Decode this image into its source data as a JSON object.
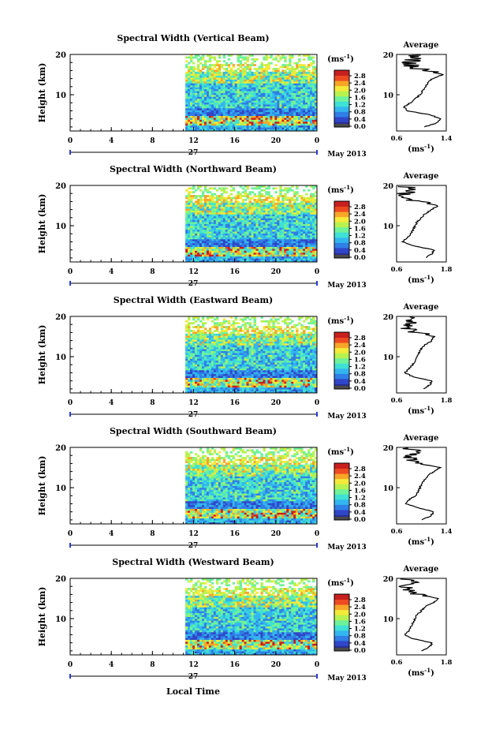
{
  "xlabel": "Local Time",
  "colors": {
    "colorbar": [
      "#2b2f8f",
      "#3046c8",
      "#2f7fe6",
      "#33b6ee",
      "#3fe0d5",
      "#6ef29a",
      "#b8f24f",
      "#f4ea3a",
      "#f7a628",
      "#ee4a21",
      "#c81f1f"
    ],
    "legend_bottom": "#4a4a4a",
    "axis": "#000000"
  },
  "chart_data": [
    {
      "type": "heatmap",
      "title": "Spectral Width (Vertical Beam)",
      "ylabel": "Height (km)",
      "yticks": [
        "20",
        "10"
      ],
      "ylim": [
        1,
        20
      ],
      "xticks": [
        "0",
        "4",
        "8",
        "12",
        "16",
        "20",
        "0"
      ],
      "xlim": [
        0,
        24
      ],
      "date_label": "27",
      "month_label": "May 2013",
      "data_start_hour": 11.2,
      "colorbar": {
        "unit": "(ms-1)",
        "ticks": [
          "2.8",
          "2.4",
          "2.0",
          "1.6",
          "1.2",
          "0.8",
          "0.4",
          "0.0"
        ]
      },
      "average": {
        "title": "Average",
        "xticks": [
          "0.6",
          "1.4"
        ],
        "xlim": [
          0.6,
          1.4
        ],
        "xlabel": "(ms-1)",
        "yticks": [
          "20",
          "10"
        ],
        "profile": [
          [
            1.05,
            2
          ],
          [
            1.25,
            3
          ],
          [
            1.3,
            4
          ],
          [
            1.15,
            5
          ],
          [
            0.78,
            6
          ],
          [
            0.72,
            7
          ],
          [
            0.82,
            8
          ],
          [
            0.9,
            9
          ],
          [
            0.98,
            10
          ],
          [
            1.02,
            11
          ],
          [
            1.06,
            12
          ],
          [
            1.1,
            13
          ],
          [
            1.18,
            14
          ],
          [
            1.35,
            15
          ],
          [
            1.05,
            16
          ],
          [
            0.85,
            17
          ],
          [
            0.8,
            18
          ],
          [
            0.9,
            19
          ],
          [
            0.85,
            20
          ]
        ]
      }
    },
    {
      "type": "heatmap",
      "title": "Spectral Width (Northward Beam)",
      "ylabel": "Height (km)",
      "yticks": [
        "20",
        "10"
      ],
      "ylim": [
        1,
        20
      ],
      "xticks": [
        "0",
        "4",
        "8",
        "12",
        "16",
        "20",
        "0"
      ],
      "xlim": [
        0,
        24
      ],
      "date_label": "27",
      "month_label": "May 2013",
      "data_start_hour": 11.2,
      "colorbar": {
        "unit": "(ms-1)",
        "ticks": [
          "2.8",
          "2.4",
          "2.0",
          "1.6",
          "1.2",
          "0.8",
          "0.4",
          "0.0"
        ]
      },
      "average": {
        "title": "Average",
        "xticks": [
          "0.6",
          "1.8"
        ],
        "xlim": [
          0.6,
          1.8
        ],
        "xlabel": "(ms-1)",
        "yticks": [
          "20",
          "10"
        ],
        "profile": [
          [
            1.3,
            2
          ],
          [
            1.45,
            3
          ],
          [
            1.5,
            4
          ],
          [
            1.0,
            5
          ],
          [
            0.75,
            6
          ],
          [
            0.85,
            7
          ],
          [
            0.95,
            8
          ],
          [
            1.0,
            9
          ],
          [
            1.05,
            10
          ],
          [
            1.1,
            11
          ],
          [
            1.2,
            12
          ],
          [
            1.3,
            13
          ],
          [
            1.45,
            14
          ],
          [
            1.6,
            15
          ],
          [
            1.1,
            16
          ],
          [
            0.85,
            17
          ],
          [
            0.8,
            18
          ],
          [
            1.0,
            19
          ],
          [
            0.75,
            20
          ]
        ]
      }
    },
    {
      "type": "heatmap",
      "title": "Spectral Width (Eastward Beam)",
      "ylabel": "Height (km)",
      "yticks": [
        "20",
        "10"
      ],
      "ylim": [
        1,
        20
      ],
      "xticks": [
        "0",
        "4",
        "8",
        "12",
        "16",
        "20",
        "0"
      ],
      "xlim": [
        0,
        24
      ],
      "date_label": "27",
      "month_label": "May 2013",
      "data_start_hour": 11.2,
      "colorbar": {
        "unit": "(ms-1)",
        "ticks": [
          "2.8",
          "2.4",
          "2.0",
          "1.6",
          "1.2",
          "0.8",
          "0.4",
          "0.0"
        ]
      },
      "average": {
        "title": "Average",
        "xticks": [
          "0.6",
          "1.8"
        ],
        "xlim": [
          0.6,
          1.8
        ],
        "xlabel": "(ms-1)",
        "yticks": [
          "20",
          "10"
        ],
        "profile": [
          [
            1.25,
            2
          ],
          [
            1.4,
            3
          ],
          [
            1.45,
            4
          ],
          [
            1.0,
            5
          ],
          [
            0.8,
            6
          ],
          [
            0.9,
            7
          ],
          [
            0.98,
            8
          ],
          [
            1.05,
            9
          ],
          [
            1.1,
            10
          ],
          [
            1.15,
            11
          ],
          [
            1.2,
            12
          ],
          [
            1.3,
            13
          ],
          [
            1.45,
            14
          ],
          [
            1.5,
            15
          ],
          [
            1.1,
            16
          ],
          [
            0.9,
            17
          ],
          [
            0.85,
            18
          ],
          [
            1.0,
            19
          ],
          [
            0.8,
            20
          ]
        ]
      }
    },
    {
      "type": "heatmap",
      "title": "Spectral Width (Southward Beam)",
      "ylabel": "Height (km)",
      "yticks": [
        "20",
        "10"
      ],
      "ylim": [
        1,
        20
      ],
      "xticks": [
        "0",
        "4",
        "8",
        "12",
        "16",
        "20",
        "0"
      ],
      "xlim": [
        0,
        24
      ],
      "date_label": "27",
      "month_label": "May 2013",
      "data_start_hour": 11.2,
      "colorbar": {
        "unit": "(ms-1)",
        "ticks": [
          "2.8",
          "2.4",
          "2.0",
          "1.6",
          "1.2",
          "0.8",
          "0.4",
          "0.0"
        ]
      },
      "average": {
        "title": "Average",
        "xticks": [
          "0.6",
          "1.4"
        ],
        "xlim": [
          0.6,
          1.4
        ],
        "xlabel": "(ms-1)",
        "yticks": [
          "20",
          "10"
        ],
        "profile": [
          [
            1.0,
            2
          ],
          [
            1.15,
            3
          ],
          [
            1.2,
            4
          ],
          [
            0.95,
            5
          ],
          [
            0.75,
            6
          ],
          [
            0.8,
            7
          ],
          [
            0.9,
            8
          ],
          [
            0.95,
            9
          ],
          [
            0.98,
            10
          ],
          [
            1.0,
            11
          ],
          [
            1.05,
            12
          ],
          [
            1.1,
            13
          ],
          [
            1.2,
            14
          ],
          [
            1.3,
            15
          ],
          [
            1.0,
            16
          ],
          [
            0.85,
            17
          ],
          [
            0.8,
            18
          ],
          [
            0.9,
            19
          ],
          [
            0.8,
            20
          ]
        ]
      }
    },
    {
      "type": "heatmap",
      "title": "Spectral Width (Westward Beam)",
      "ylabel": "Height (km)",
      "yticks": [
        "20",
        "10"
      ],
      "ylim": [
        1,
        20
      ],
      "xticks": [
        "0",
        "4",
        "8",
        "12",
        "16",
        "20",
        "0"
      ],
      "xlim": [
        0,
        24
      ],
      "date_label": "27",
      "month_label": "May 2013",
      "data_start_hour": 11.2,
      "colorbar": {
        "unit": "(ms-1)",
        "ticks": [
          "2.8",
          "2.4",
          "2.0",
          "1.6",
          "1.2",
          "0.8",
          "0.4",
          "0.0"
        ]
      },
      "average": {
        "title": "Average",
        "xticks": [
          "0.6",
          "1.8"
        ],
        "xlim": [
          0.6,
          1.8
        ],
        "xlabel": "(ms-1)",
        "yticks": [
          "20",
          "10"
        ],
        "profile": [
          [
            1.2,
            2
          ],
          [
            1.4,
            3
          ],
          [
            1.45,
            4
          ],
          [
            1.0,
            5
          ],
          [
            0.8,
            6
          ],
          [
            0.9,
            7
          ],
          [
            0.95,
            8
          ],
          [
            1.0,
            9
          ],
          [
            1.05,
            10
          ],
          [
            1.1,
            11
          ],
          [
            1.2,
            12
          ],
          [
            1.3,
            13
          ],
          [
            1.5,
            14
          ],
          [
            1.6,
            15
          ],
          [
            1.15,
            16
          ],
          [
            0.9,
            17
          ],
          [
            0.85,
            18
          ],
          [
            1.0,
            19
          ],
          [
            0.8,
            20
          ]
        ]
      }
    }
  ]
}
